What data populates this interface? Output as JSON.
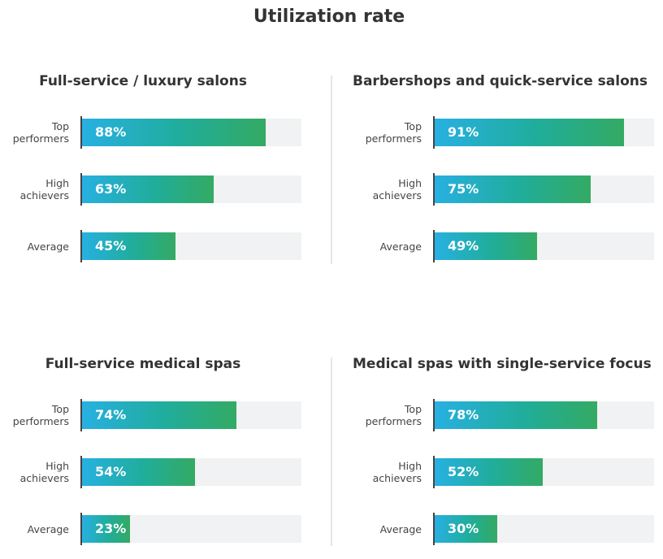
{
  "title": "Utilization rate",
  "colors": {
    "bar_start": "#27b0e2",
    "bar_end": "#34aa63",
    "track": "#f1f2f4"
  },
  "chart_data": [
    {
      "type": "bar",
      "orientation": "horizontal",
      "title": "Full-service / luxury salons",
      "categories": [
        "Top\nperformers",
        "High\nachievers",
        "Average"
      ],
      "values": [
        88,
        63,
        45
      ],
      "labels": [
        "88%",
        "63%",
        "45%"
      ],
      "xlim": [
        0,
        100
      ]
    },
    {
      "type": "bar",
      "orientation": "horizontal",
      "title": "Barbershops and quick-service salons",
      "categories": [
        "Top\nperformers",
        "High\nachievers",
        "Average"
      ],
      "values": [
        91,
        75,
        49
      ],
      "labels": [
        "91%",
        "75%",
        "49%"
      ],
      "xlim": [
        0,
        100
      ]
    },
    {
      "type": "bar",
      "orientation": "horizontal",
      "title": "Full-service medical spas",
      "categories": [
        "Top\nperformers",
        "High\nachievers",
        "Average"
      ],
      "values": [
        74,
        54,
        23
      ],
      "labels": [
        "74%",
        "54%",
        "23%"
      ],
      "xlim": [
        0,
        100
      ]
    },
    {
      "type": "bar",
      "orientation": "horizontal",
      "title": "Medical spas with single-service focus",
      "categories": [
        "Top\nperformers",
        "High\nachievers",
        "Average"
      ],
      "values": [
        78,
        52,
        30
      ],
      "labels": [
        "78%",
        "52%",
        "30%"
      ],
      "xlim": [
        0,
        100
      ]
    }
  ]
}
